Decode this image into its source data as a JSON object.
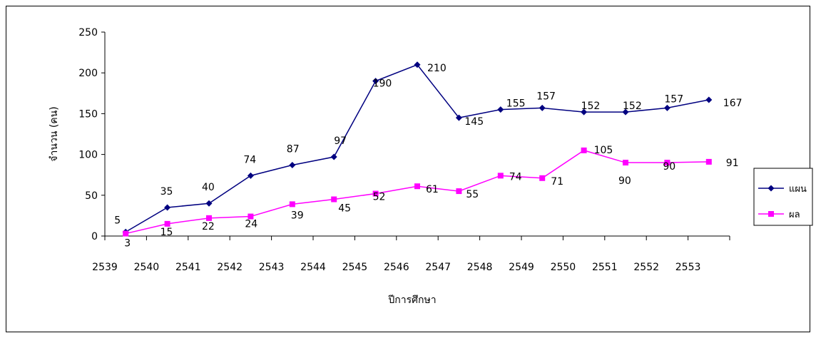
{
  "chart_data": {
    "type": "line",
    "title": "",
    "xlabel": "ปีการศึกษา",
    "ylabel": "จำนวน (คน)",
    "categories": [
      "2539",
      "2540",
      "2541",
      "2542",
      "2543",
      "2544",
      "2545",
      "2546",
      "2547",
      "2548",
      "2549",
      "2550",
      "2551",
      "2552",
      "2553"
    ],
    "ylim": [
      0,
      250
    ],
    "yticks": [
      0,
      50,
      100,
      150,
      200,
      250
    ],
    "grid": false,
    "legend_position": "right",
    "series": [
      {
        "name": "แผน",
        "color": "#000080",
        "marker": "diamond",
        "values": [
          5,
          35,
          40,
          74,
          87,
          97,
          190,
          210,
          145,
          155,
          157,
          152,
          152,
          157,
          167
        ]
      },
      {
        "name": "ผล",
        "color": "#FF00FF",
        "marker": "square",
        "values": [
          3,
          15,
          22,
          24,
          39,
          45,
          52,
          61,
          55,
          74,
          71,
          105,
          90,
          90,
          91
        ]
      }
    ]
  }
}
